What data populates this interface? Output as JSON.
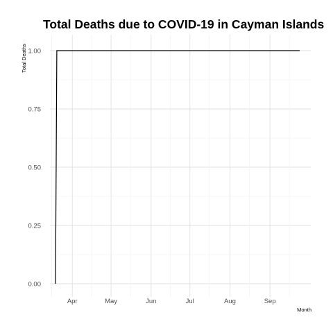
{
  "chart_data": {
    "type": "line",
    "title": "Total Deaths due to COVID-19 in Cayman Islands",
    "xlabel": "Month",
    "ylabel": "Total Deaths",
    "x_ticks": [
      "Apr",
      "May",
      "Jun",
      "Jul",
      "Aug",
      "Sep"
    ],
    "y_ticks": [
      "0.00",
      "0.25",
      "0.50",
      "0.75",
      "1.00"
    ],
    "ylim": [
      0,
      1
    ],
    "xlim": [
      "2020-03-15",
      "2020-09-30"
    ],
    "grid": true,
    "series": [
      {
        "x": [
          "2020-03-19",
          "2020-03-20",
          "2020-09-24"
        ],
        "y": [
          0,
          1,
          1
        ]
      }
    ]
  }
}
